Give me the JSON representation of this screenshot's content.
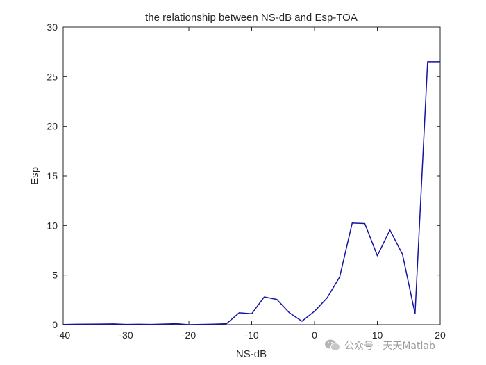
{
  "chart_data": {
    "type": "line",
    "title": "the relationship between NS-dB and Esp-TOA",
    "xlabel": "NS-dB",
    "ylabel": "Esp",
    "xlim": [
      -40,
      20
    ],
    "ylim": [
      0,
      30
    ],
    "xticks": [
      -40,
      -30,
      -20,
      -10,
      0,
      10,
      20
    ],
    "yticks": [
      0,
      5,
      10,
      15,
      20,
      25,
      30
    ],
    "grid": false,
    "series": [
      {
        "color": "#1414a0",
        "x": [
          -40,
          -38,
          -36,
          -34,
          -32,
          -30,
          -28,
          -26,
          -24,
          -22,
          -20,
          -18,
          -16,
          -14,
          -12,
          -10,
          -8,
          -6,
          -4,
          -2,
          0,
          2,
          4,
          6,
          8,
          10,
          12,
          14,
          16,
          18,
          20
        ],
        "y": [
          0.02,
          0.04,
          0.05,
          0.06,
          0.08,
          0.03,
          0.04,
          0.03,
          0.06,
          0.1,
          0.0,
          0.03,
          0.05,
          0.1,
          1.2,
          1.1,
          2.8,
          2.55,
          1.2,
          0.35,
          1.35,
          2.7,
          4.8,
          10.25,
          10.2,
          6.95,
          9.55,
          7.1,
          1.1,
          26.5,
          26.5
        ]
      }
    ]
  },
  "watermark": {
    "text": "公众号 · 天天Matlab",
    "icon": "wechat-icon"
  }
}
